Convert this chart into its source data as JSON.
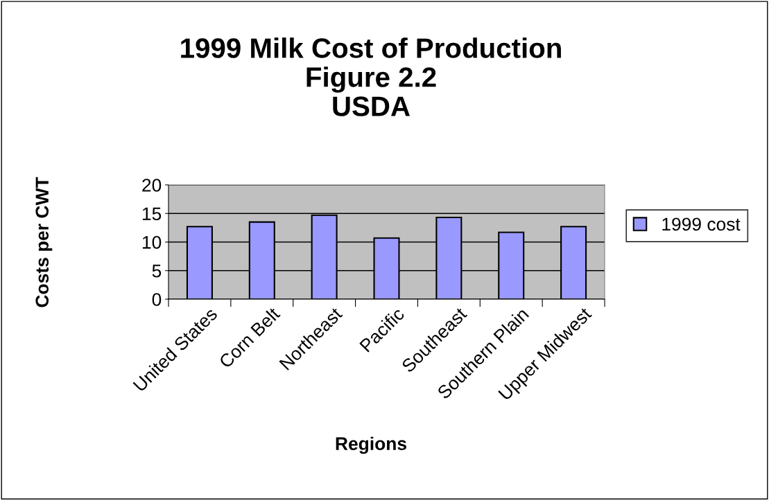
{
  "chart_data": {
    "type": "bar",
    "title": "1999 Milk Cost of Production\nFigure 2.2\nUSDA",
    "xlabel": "Regions",
    "ylabel": "Costs per CWT",
    "categories": [
      "United States",
      "Corn Belt",
      "Northeast",
      "Pacific",
      "Southeast",
      "Southern Plain",
      "Upper Midwest"
    ],
    "series": [
      {
        "name": "1999 cost",
        "color": "#9999ff",
        "values": [
          12.7,
          13.5,
          14.7,
          10.7,
          14.3,
          11.7,
          12.7
        ]
      }
    ],
    "ylim": [
      0,
      20
    ],
    "yticks": [
      0,
      5,
      10,
      15,
      20
    ],
    "grid": "y",
    "legend": "right"
  }
}
